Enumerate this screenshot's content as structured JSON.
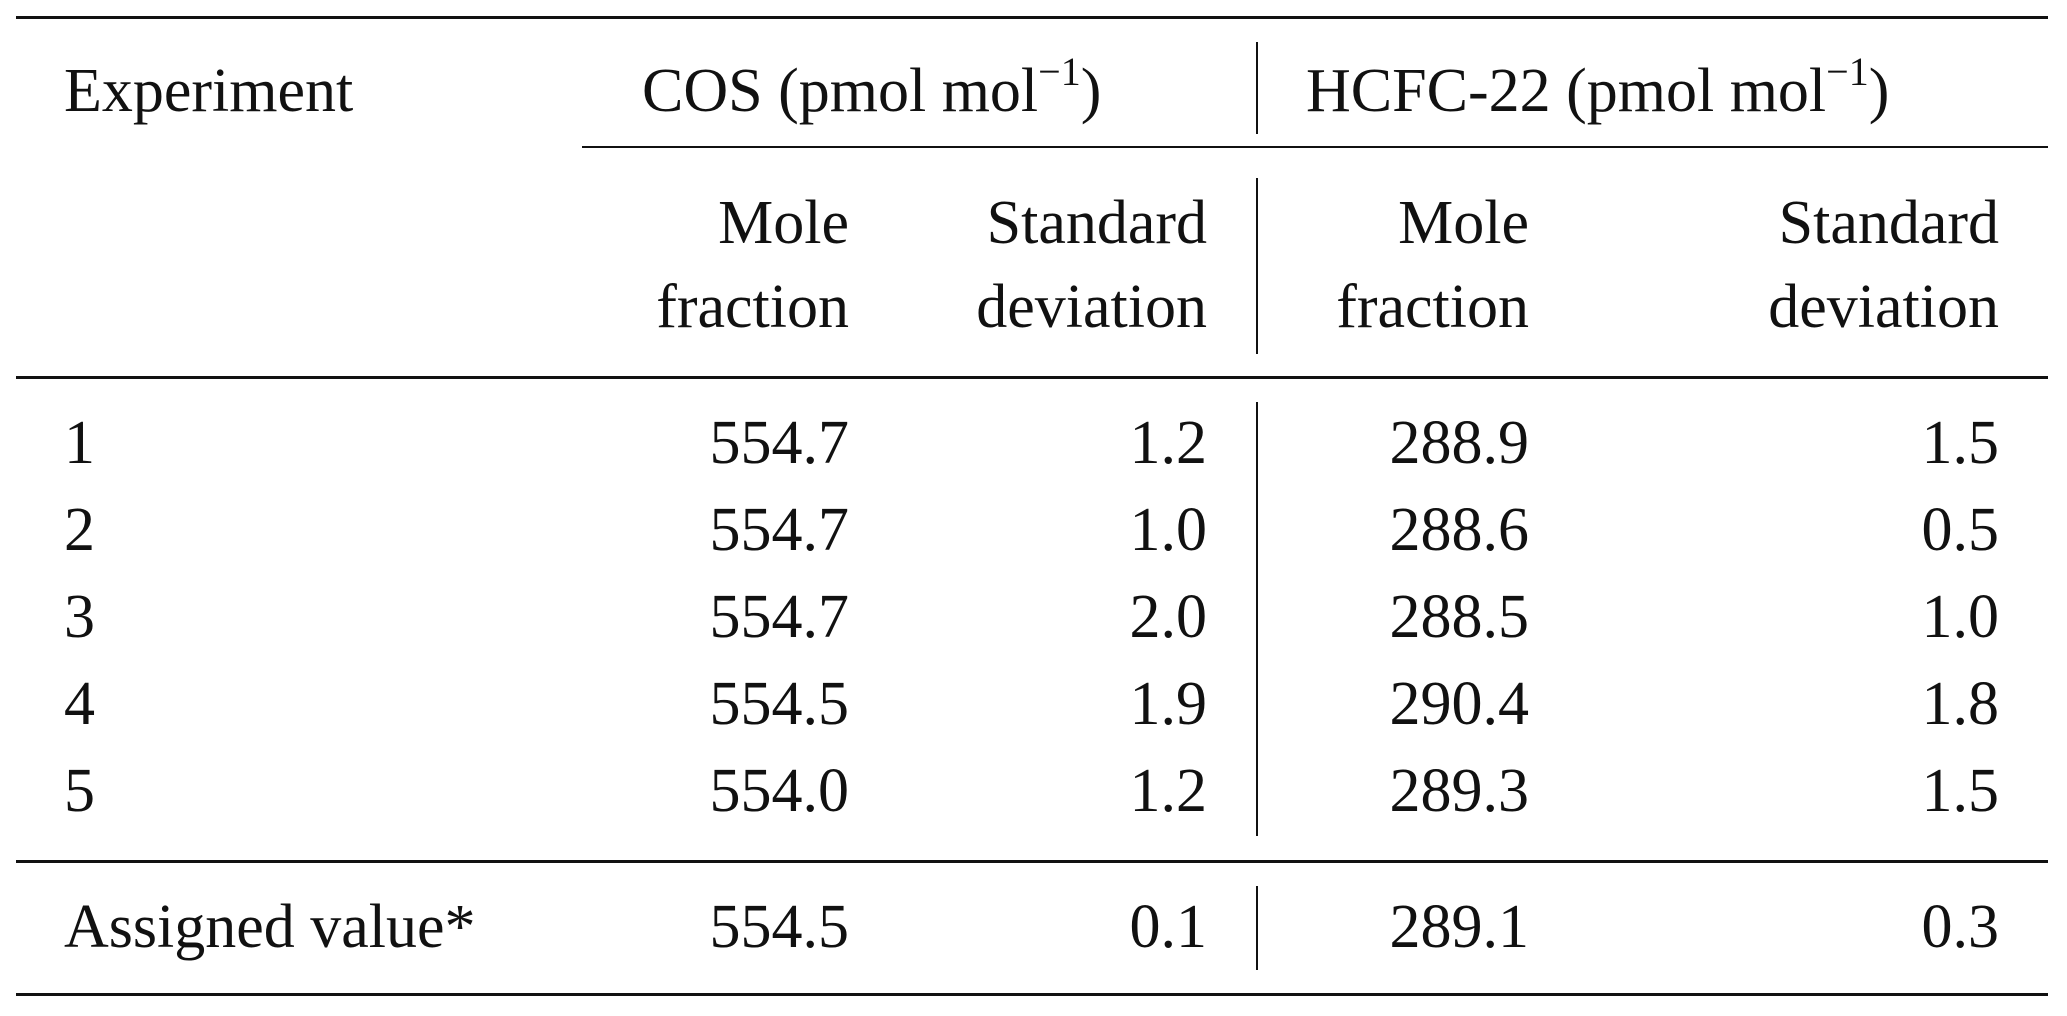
{
  "header": {
    "experiment": "Experiment",
    "cos_group": {
      "name": "COS (pmol mol",
      "sup": "−1",
      "close": ")"
    },
    "hcfc_group": {
      "name": "HCFC-22 (pmol mol",
      "sup": "−1",
      "close": ")"
    },
    "sub": {
      "mole_line1": "Mole",
      "mole_line2": "fraction",
      "std_line1": "Standard",
      "std_line2": "deviation"
    }
  },
  "rows": [
    {
      "experiment": "1",
      "cos_mole": "554.7",
      "cos_sd": "1.2",
      "hcfc_mole": "288.9",
      "hcfc_sd": "1.5"
    },
    {
      "experiment": "2",
      "cos_mole": "554.7",
      "cos_sd": "1.0",
      "hcfc_mole": "288.6",
      "hcfc_sd": "0.5"
    },
    {
      "experiment": "3",
      "cos_mole": "554.7",
      "cos_sd": "2.0",
      "hcfc_mole": "288.5",
      "hcfc_sd": "1.0"
    },
    {
      "experiment": "4",
      "cos_mole": "554.5",
      "cos_sd": "1.9",
      "hcfc_mole": "290.4",
      "hcfc_sd": "1.8"
    },
    {
      "experiment": "5",
      "cos_mole": "554.0",
      "cos_sd": "1.2",
      "hcfc_mole": "289.3",
      "hcfc_sd": "1.5"
    }
  ],
  "assigned": {
    "experiment": "Assigned value*",
    "cos_mole": "554.5",
    "cos_sd": "0.1",
    "hcfc_mole": "289.1",
    "hcfc_sd": "0.3"
  }
}
